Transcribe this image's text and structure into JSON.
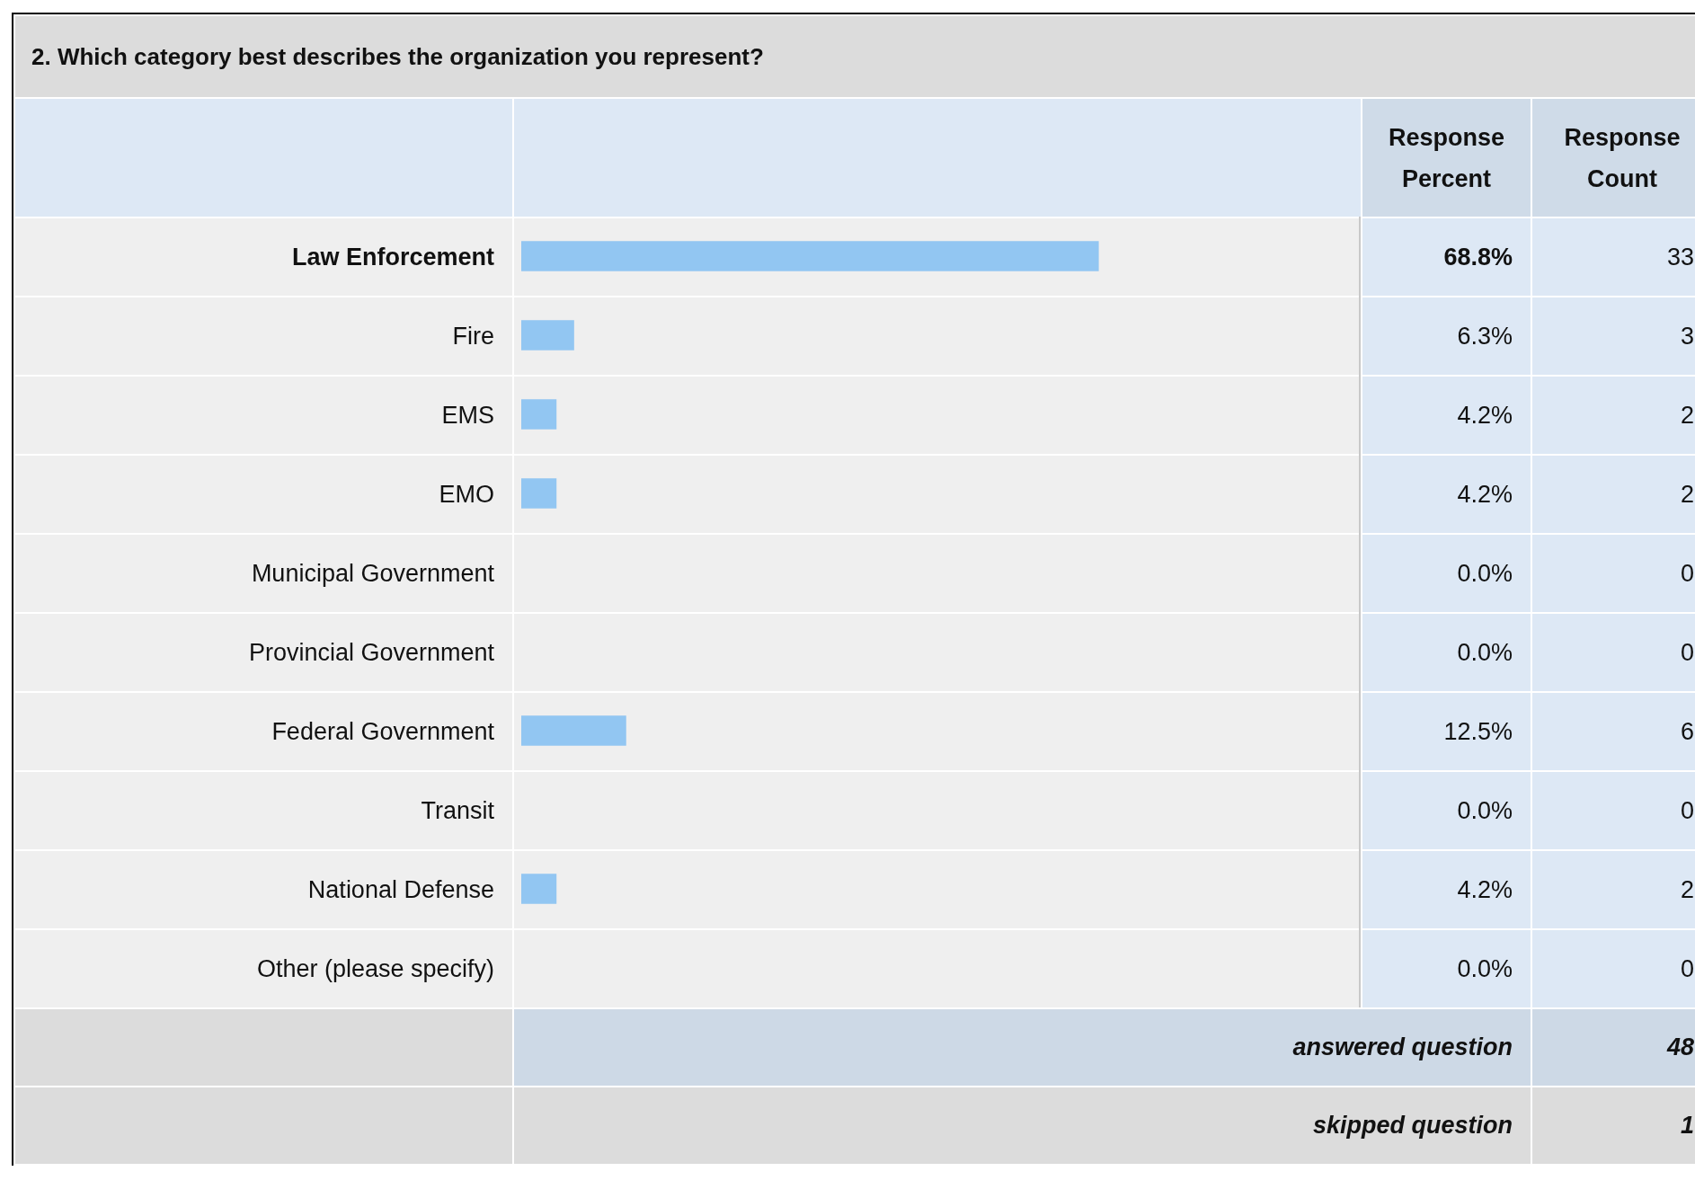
{
  "chart_data": {
    "type": "bar",
    "orientation": "horizontal",
    "title": "2. Which category best describes the organization you represent?",
    "categories": [
      "Law Enforcement",
      "Fire",
      "EMS",
      "EMO",
      "Municipal Government",
      "Provincial Government",
      "Federal Government",
      "Transit",
      "National Defense",
      "Other (please specify)"
    ],
    "values": [
      68.8,
      6.3,
      4.2,
      4.2,
      0.0,
      0.0,
      12.5,
      0.0,
      4.2,
      0.0
    ],
    "value_labels": [
      "68.8%",
      "6.3%",
      "4.2%",
      "4.2%",
      "0.0%",
      "0.0%",
      "12.5%",
      "0.0%",
      "4.2%",
      "0.0%"
    ],
    "color": "#92c6f2",
    "xlim": [
      0,
      100
    ],
    "tick_labels": false,
    "annotations": [
      "Response Percent",
      "Response Count",
      "33",
      "3",
      "2",
      "2",
      "0",
      "0",
      "6",
      "0",
      "2",
      "0",
      "answered question",
      "48",
      "skipped question",
      "1"
    ]
  }
}
